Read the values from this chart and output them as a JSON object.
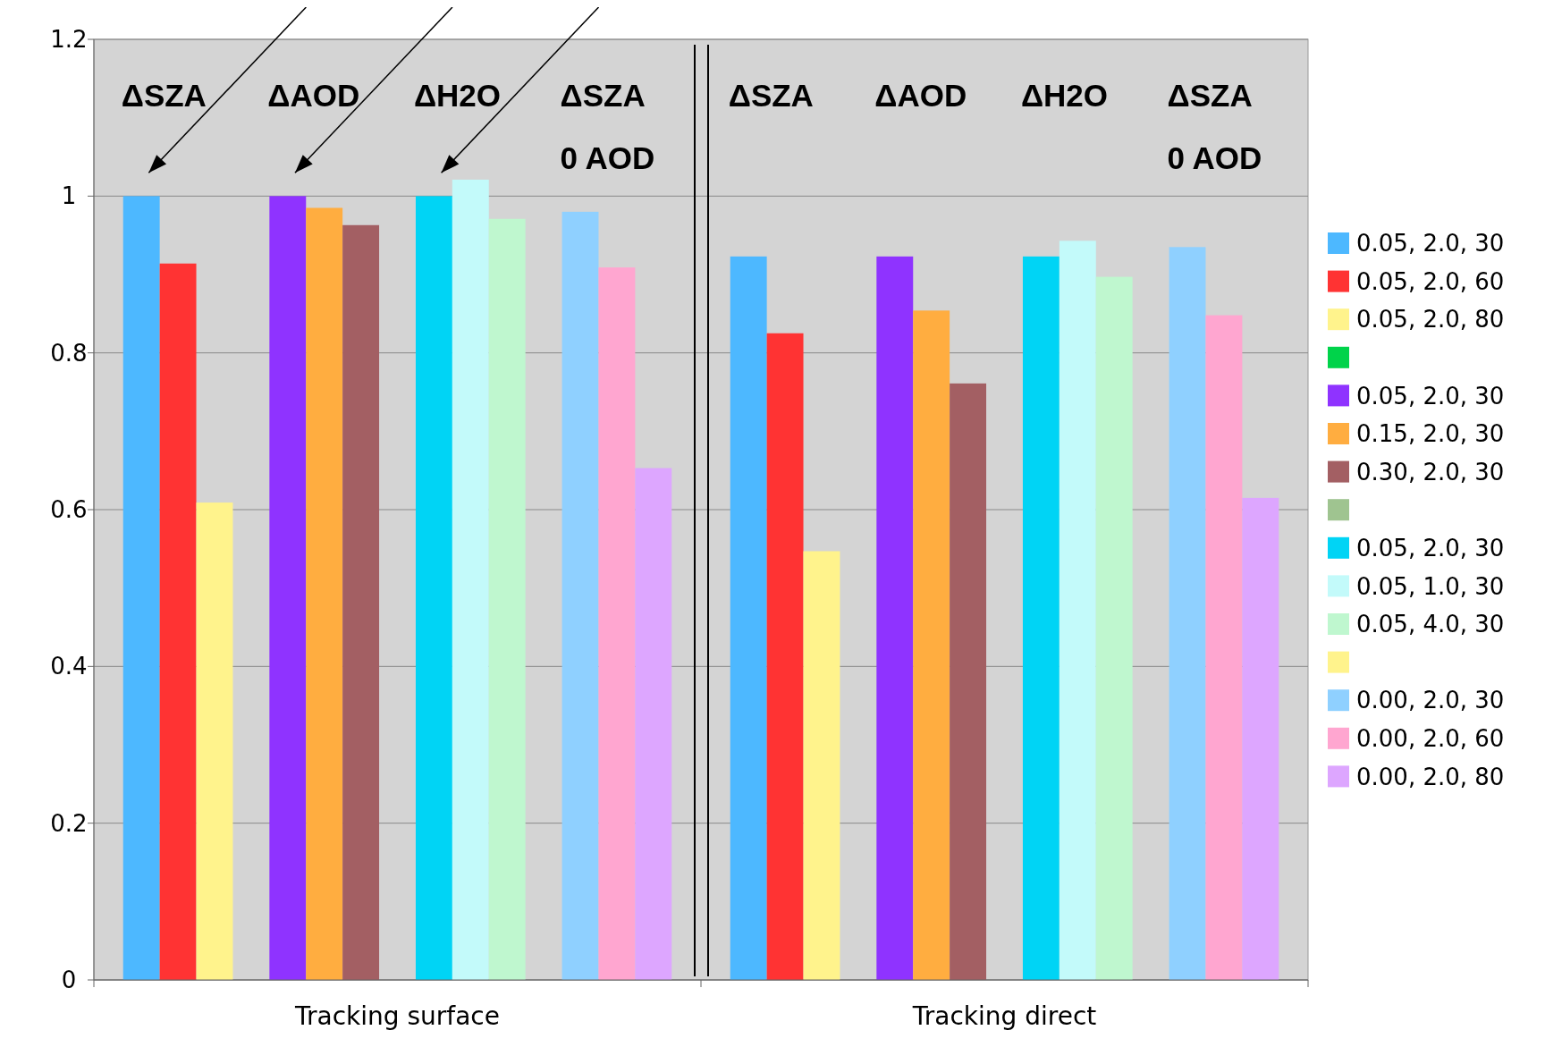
{
  "chart_data": {
    "type": "bar",
    "categories": [
      "Tracking surface",
      "Tracking direct"
    ],
    "ylim": [
      0,
      1.2
    ],
    "yticks": [
      0,
      0.2,
      0.4,
      0.6,
      0.8,
      1,
      1.2
    ],
    "grid": "y",
    "legend": "right",
    "annotations": [
      "ΔSZA",
      "ΔAOD",
      "ΔH2O",
      "ΔSZA\n0 AOD",
      "ΔSZA",
      "ΔAOD",
      "ΔH2O",
      "ΔSZA\n0 AOD"
    ],
    "series": [
      {
        "name": "0.05, 2.0, 30",
        "color": "#4db8ff",
        "values": [
          1.0,
          0.923
        ]
      },
      {
        "name": "0.05, 2.0, 60",
        "color": "#ff3333",
        "values": [
          0.914,
          0.825
        ]
      },
      {
        "name": "0.05, 2.0, 80",
        "color": "#fff38c",
        "values": [
          0.609,
          0.547
        ]
      },
      {
        "color": "#00d34a",
        "values": [
          null,
          null
        ]
      },
      {
        "name": "0.05, 2.0, 30",
        "color": "#8f33ff",
        "values": [
          1.0,
          0.923
        ]
      },
      {
        "name": "0.15, 2.0, 30",
        "color": "#ffad40",
        "values": [
          0.985,
          0.854
        ]
      },
      {
        "name": "0.30, 2.0, 30",
        "color": "#a35f63",
        "values": [
          0.963,
          0.761
        ]
      },
      {
        "color": "#9fc490",
        "values": [
          null,
          null
        ]
      },
      {
        "name": "0.05, 2.0, 30",
        "color": "#00d4f5",
        "values": [
          1.0,
          0.923
        ]
      },
      {
        "name": "0.05, 1.0, 30",
        "color": "#c3fafa",
        "values": [
          1.021,
          0.943
        ]
      },
      {
        "name": "0.05, 4.0, 30",
        "color": "#bff7cf",
        "values": [
          0.971,
          0.897
        ]
      },
      {
        "color": "#fff38c",
        "values": [
          null,
          null
        ]
      },
      {
        "name": "0.00, 2.0, 30",
        "color": "#8fd0ff",
        "values": [
          0.98,
          0.935
        ]
      },
      {
        "name": "0.00, 2.0, 60",
        "color": "#ffa6d0",
        "values": [
          0.909,
          0.848
        ]
      },
      {
        "name": "0.00, 2.0, 80",
        "color": "#dda6ff",
        "values": [
          0.653,
          0.615
        ]
      }
    ]
  }
}
